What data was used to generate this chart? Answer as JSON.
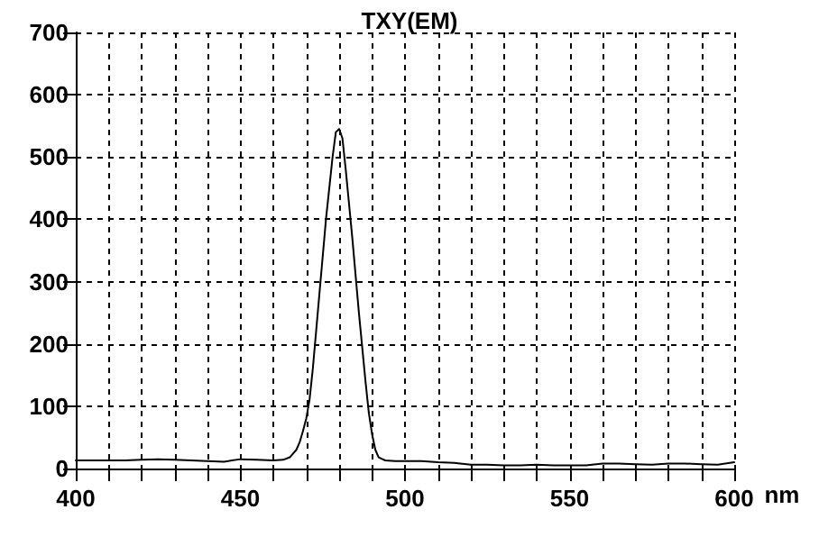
{
  "chart_data": {
    "type": "line",
    "title": "TXY(EM)",
    "xlabel": "nm",
    "series": [
      {
        "color": "#000000",
        "x": [
          400,
          405,
          410,
          415,
          420,
          425,
          430,
          435,
          440,
          445,
          450,
          455,
          460,
          463,
          465,
          467,
          468,
          469,
          470,
          471,
          472,
          474,
          476,
          478,
          479,
          480,
          481,
          482,
          484,
          486,
          488,
          489,
          490,
          491,
          492,
          494,
          497,
          500,
          505,
          510,
          515,
          520,
          525,
          530,
          535,
          540,
          545,
          550,
          555,
          560,
          565,
          570,
          575,
          580,
          585,
          590,
          595,
          600
        ],
        "values": [
          13,
          13,
          13,
          13,
          14,
          15,
          14,
          13,
          12,
          11,
          15,
          14,
          13,
          14,
          18,
          30,
          42,
          60,
          80,
          110,
          160,
          280,
          400,
          500,
          540,
          545,
          530,
          480,
          370,
          250,
          140,
          90,
          55,
          30,
          18,
          13,
          12,
          12,
          12,
          10,
          9,
          6,
          6,
          5,
          5,
          6,
          5,
          5,
          5,
          8,
          8,
          7,
          6,
          8,
          8,
          7,
          6,
          10
        ]
      }
    ],
    "xlim": [
      400,
      600
    ],
    "xticks": [
      400,
      {
        "value": 410,
        "label": null
      },
      {
        "value": 420,
        "label": null
      },
      {
        "value": 430,
        "label": null
      },
      {
        "value": 440,
        "label": null
      },
      450,
      {
        "value": 460,
        "label": null
      },
      {
        "value": 470,
        "label": null
      },
      {
        "value": 480,
        "label": null
      },
      {
        "value": 490,
        "label": null
      },
      500,
      {
        "value": 510,
        "label": null
      },
      {
        "value": 520,
        "label": null
      },
      {
        "value": 530,
        "label": null
      },
      {
        "value": 540,
        "label": null
      },
      550,
      {
        "value": 560,
        "label": null
      },
      {
        "value": 570,
        "label": null
      },
      {
        "value": 580,
        "label": null
      },
      {
        "value": 590,
        "label": null
      },
      600
    ],
    "ylim": [
      0,
      700
    ],
    "yticks": [
      0,
      100,
      200,
      300,
      400,
      500,
      600,
      700
    ],
    "grid": true,
    "marker": "none",
    "line_style": "solid"
  }
}
